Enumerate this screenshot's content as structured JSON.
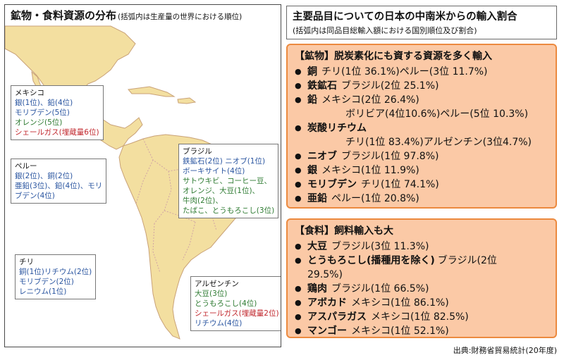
{
  "map": {
    "title": "鉱物・食料資源の分布",
    "subtitle": "(括弧内は生産量の世界における順位)",
    "regions": {
      "mexico": {
        "name": "メキシコ",
        "lines": [
          {
            "text": "銀(1位)、鉛(4位)",
            "color": "blue"
          },
          {
            "text": "モリブデン(5位)",
            "color": "blue"
          },
          {
            "text": "オレンジ(5位)",
            "color": "green"
          },
          {
            "text": "シェールガス(埋蔵量6位)",
            "color": "red"
          }
        ]
      },
      "peru": {
        "name": "ペルー",
        "lines": [
          {
            "text": "銀(2位)、銅(2位)",
            "color": "blue"
          },
          {
            "text": "亜鉛(3位)、鉛(4位)、モリ",
            "color": "blue"
          },
          {
            "text": "ブデン(4位)",
            "color": "blue"
          }
        ]
      },
      "brazil": {
        "name": "ブラジル",
        "lines": [
          {
            "text": "鉄鉱石(2位) ニオブ(1位)",
            "color": "blue"
          },
          {
            "text": "ボーキサイト(4位)",
            "color": "blue"
          },
          {
            "text": "サトウキビ、コーヒー豆、",
            "color": "green"
          },
          {
            "text": "オレンジ、大豆(1位)、",
            "color": "green"
          },
          {
            "text": "牛肉(2位)、",
            "color": "green"
          },
          {
            "text": "たばこ、とうもろこし(3位)",
            "color": "green"
          }
        ]
      },
      "chile": {
        "name": "チリ",
        "lines": [
          {
            "text": "銅(1位)リチウム(2位)",
            "color": "blue"
          },
          {
            "text": "モリブデン(2位)",
            "color": "blue"
          },
          {
            "text": "レニウム(1位)",
            "color": "blue"
          }
        ]
      },
      "argentina": {
        "name": "アルゼンチン",
        "lines": [
          {
            "text": "大豆(3位)",
            "color": "green"
          },
          {
            "text": "とうもろこし(4位)",
            "color": "green"
          },
          {
            "text": "シェールガス(埋蔵量2位)",
            "color": "red"
          },
          {
            "text": "リチウム(4位)",
            "color": "blue"
          }
        ]
      }
    }
  },
  "header": {
    "title": "主要品目についての日本の中南米からの輸入割合",
    "subtitle": "(括弧内は同品目総輸入額における国別順位及び割合)"
  },
  "minerals": {
    "title": "【鉱物】脱炭素化にも資する資源を多く輸入",
    "items": [
      {
        "name": "銅",
        "detail": "チリ(1位 36.1%)ペルー(3位 11.7%)"
      },
      {
        "name": "鉄鉱石",
        "detail": "ブラジル(2位 25.1%)"
      },
      {
        "name": "鉛",
        "detail": "メキシコ(2位 26.4%)",
        "cont": "ボリビア(4位10.6%)ペルー(5位 10.3%)"
      },
      {
        "name": "炭酸リチウム",
        "detail": "",
        "cont": "チリ(1位 83.4%)アルゼンチン(3位4.7%)"
      },
      {
        "name": "ニオブ",
        "detail": "ブラジル(1位 97.8%)"
      },
      {
        "name": "銀",
        "detail": "メキシコ(1位 11.9%)"
      },
      {
        "name": "モリブデン",
        "detail": "チリ(1位 74.1%)"
      },
      {
        "name": "亜鉛",
        "detail": "ペルー(1位 20.8%)"
      }
    ]
  },
  "food": {
    "title": "【食料】飼料輸入も大",
    "items": [
      {
        "name": "大豆",
        "detail": "ブラジル(3位 11.3%)"
      },
      {
        "name": "とうもろこし",
        "note": "(播種用を除く)",
        "detail": "ブラジル(2位",
        "cont": "29.5%)"
      },
      {
        "name": "鶏肉",
        "detail": "ブラジル(1位 66.5%)"
      },
      {
        "name": "アボカド",
        "detail": "メキシコ(1位 86.1%)"
      },
      {
        "name": "アスパラガス",
        "detail": "メキシコ(1位 82.5%)"
      },
      {
        "name": "マンゴー",
        "detail": "メキシコ(1位 52.1%)"
      }
    ]
  },
  "bullet": "●",
  "source": "出典:財務省貿易統計(20年度)",
  "colors": {
    "land": "#f3dfa0",
    "border": "#d0a4a4",
    "section_fill": "#fbc9a6",
    "section_border": "#ec8a3f",
    "mineral_text": "#2a55a0",
    "food_text": "#2e7b32",
    "gas_text": "#c1272d"
  }
}
